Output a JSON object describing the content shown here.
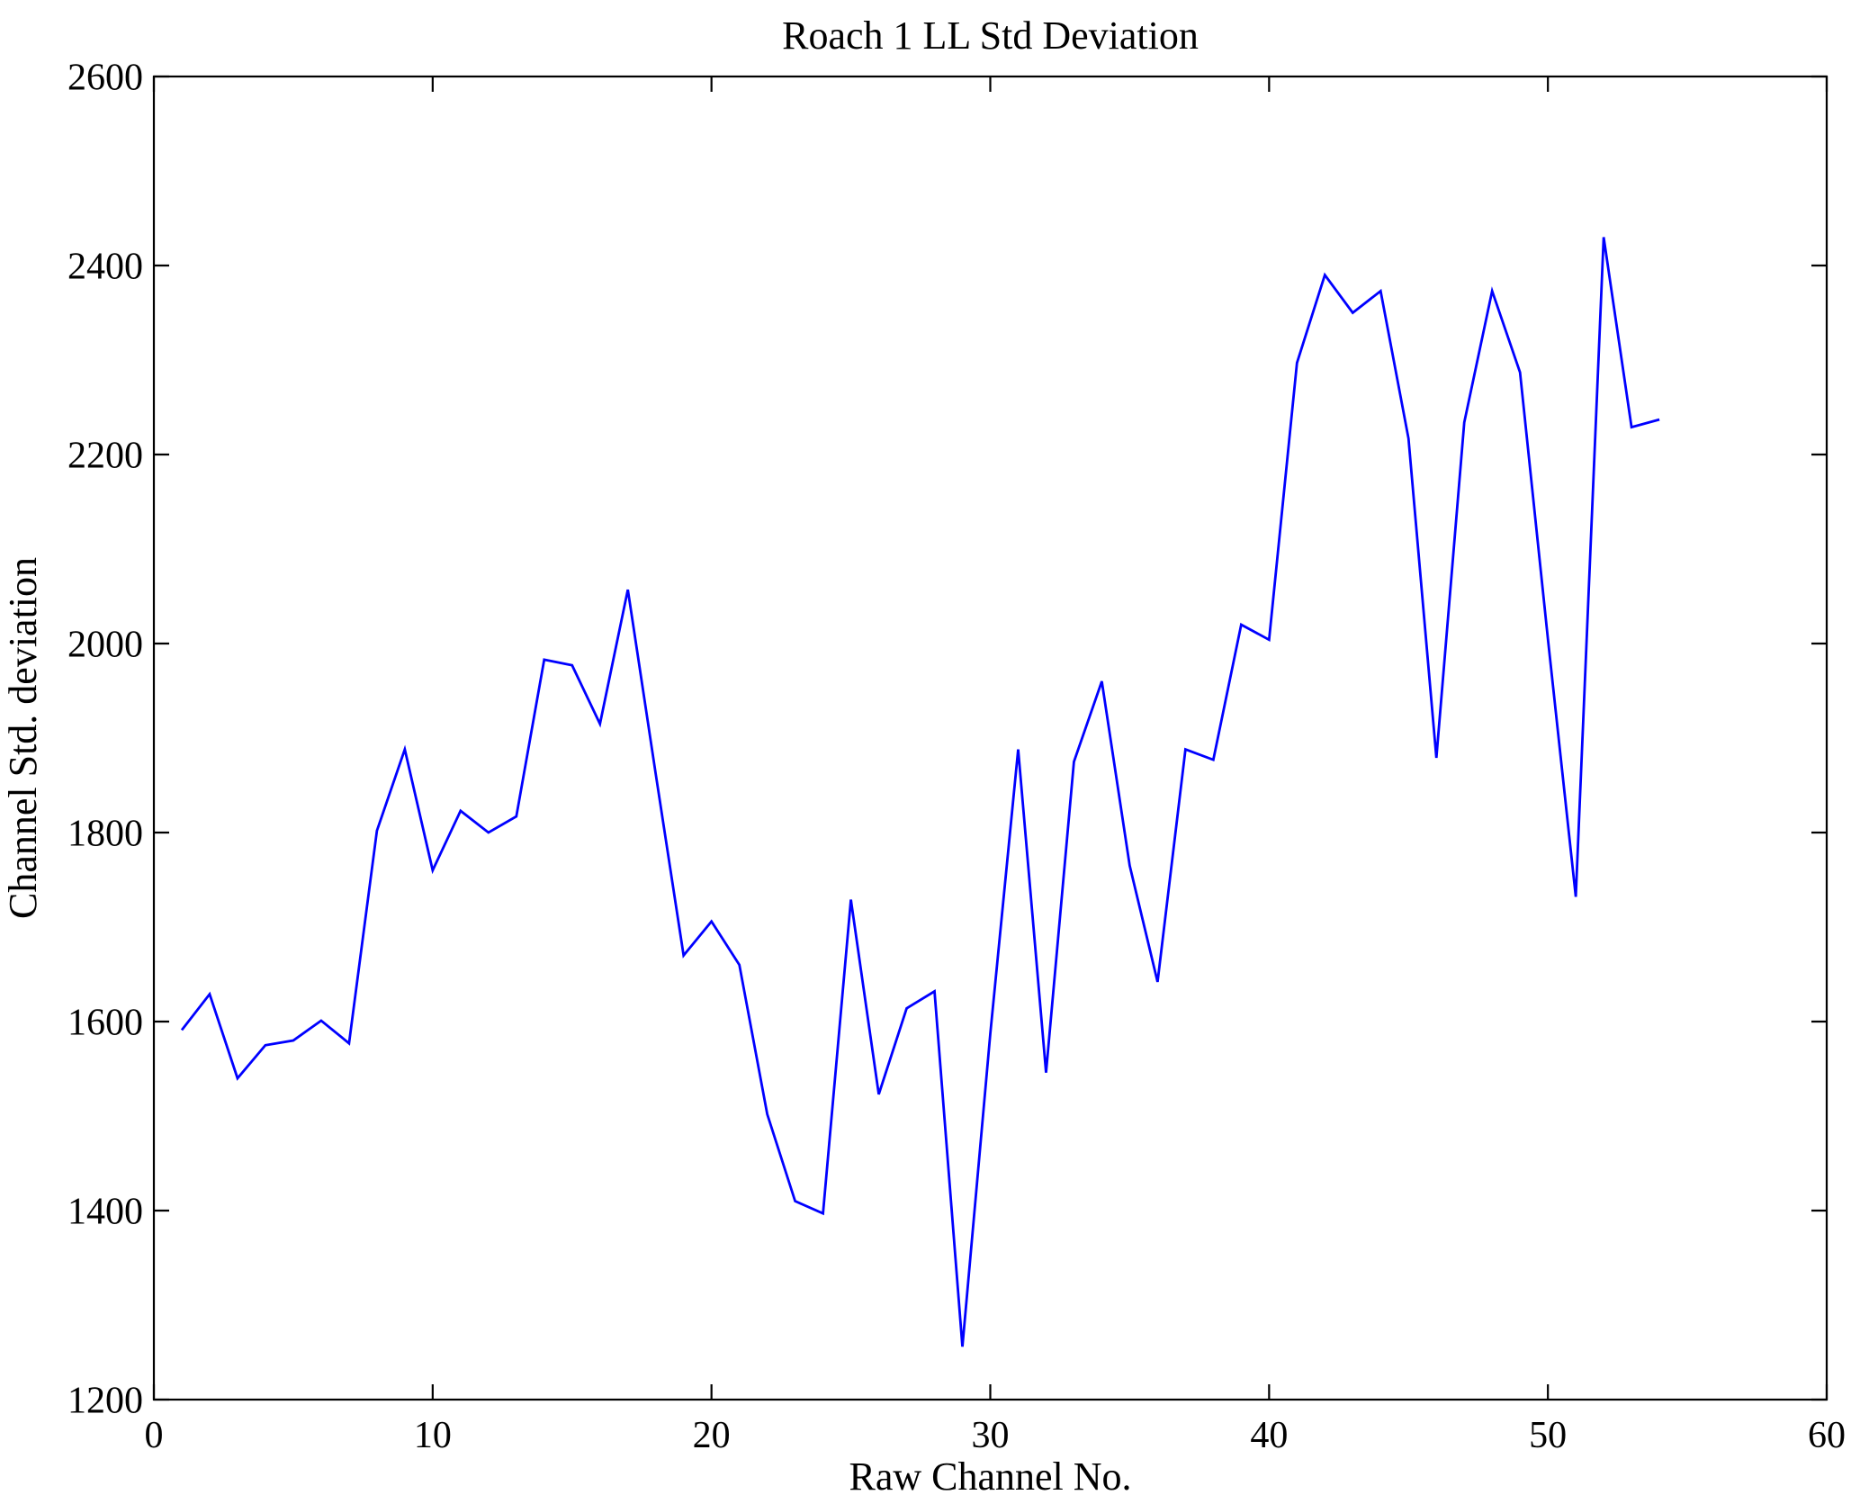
{
  "figure": {
    "background": "#ffffff",
    "axis_color": "#000000",
    "line_color": "#0000ff"
  },
  "chart_data": {
    "type": "line",
    "title": "Roach 1 LL Std Deviation",
    "xlabel": "Raw Channel No.",
    "ylabel": "Channel Std. deviation",
    "x": [
      1,
      2,
      3,
      4,
      5,
      6,
      7,
      8,
      9,
      10,
      11,
      12,
      13,
      14,
      15,
      16,
      17,
      18,
      19,
      20,
      21,
      22,
      23,
      24,
      25,
      26,
      27,
      28,
      29,
      30,
      31,
      32,
      33,
      34,
      35,
      36,
      37,
      38,
      39,
      40,
      41,
      42,
      43,
      44,
      45,
      46,
      47,
      48,
      49,
      50,
      51,
      52,
      53,
      54
    ],
    "series": [
      {
        "name": "channel-std-deviation",
        "color": "#0000ff",
        "values": [
          1591,
          1629,
          1540,
          1575,
          1580,
          1601,
          1577,
          1802,
          1888,
          1760,
          1823,
          1800,
          1817,
          1983,
          1977,
          1915,
          2057,
          1862,
          1670,
          1706,
          1660,
          1502,
          1410,
          1397,
          1729,
          1523,
          1614,
          1632,
          1256,
          1587,
          1888,
          1546,
          1875,
          1960,
          1765,
          1642,
          1888,
          1877,
          2020,
          2004,
          2297,
          2390,
          2350,
          2373,
          2217,
          1879,
          2234,
          2373,
          2287,
          2005,
          1732,
          2430,
          2229,
          2237
        ]
      }
    ],
    "xlim": [
      0,
      60
    ],
    "ylim": [
      1200,
      2600
    ],
    "xticks": [
      0,
      10,
      20,
      30,
      40,
      50,
      60
    ],
    "yticks": [
      1200,
      1400,
      1600,
      1800,
      2000,
      2200,
      2400,
      2600
    ],
    "grid": false,
    "legend_position": "none"
  }
}
